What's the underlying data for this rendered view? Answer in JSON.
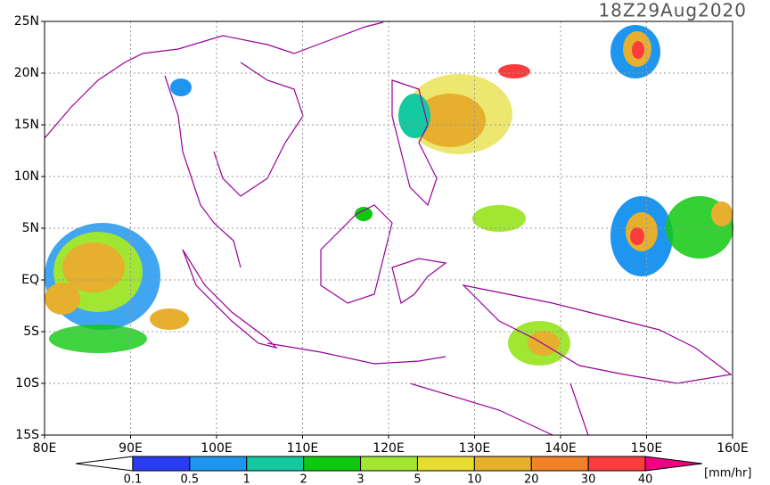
{
  "title": "18Z29Aug2020",
  "lat_labels": [
    "25N",
    "20N",
    "15N",
    "10N",
    "5N",
    "EQ",
    "5S",
    "10S",
    "15S"
  ],
  "lon_labels": [
    "80E",
    "90E",
    "100E",
    "110E",
    "120E",
    "130E",
    "140E",
    "150E",
    "160E"
  ],
  "colorbar": {
    "labels": [
      "0.1",
      "0.5",
      "1",
      "2",
      "3",
      "5",
      "10",
      "20",
      "30",
      "40"
    ],
    "colors": [
      "#ffffff",
      "#2a3cf0",
      "#1e96f0",
      "#14c8a0",
      "#10c810",
      "#a0e632",
      "#e6dc32",
      "#e6af2d",
      "#f08228",
      "#fa3c3c",
      "#f00082"
    ],
    "unit": "[mm/hr]"
  }
}
